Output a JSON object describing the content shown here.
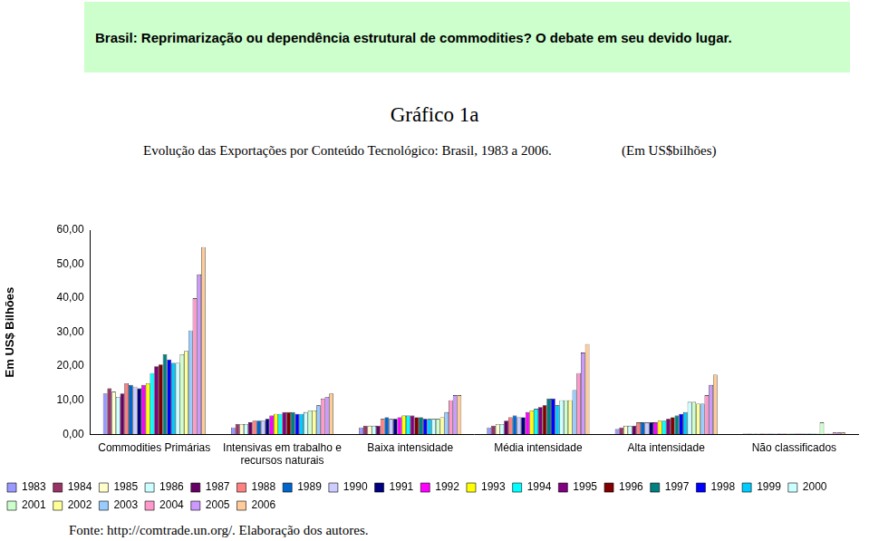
{
  "chart_data": {
    "type": "bar",
    "header": "Brasil: Reprimarização ou dependência estrutural de commodities? O debate em seu devido lugar.",
    "title": "Gráfico 1a",
    "subtitle": "Evolução das Exportações por Conteúdo Tecnológico: Brasil, 1983 a 2006.",
    "unit_note": "(Em US$bilhões)",
    "y_label": "Em US$ Bilhões",
    "source": "Fonte: http://comtrade.un.org/. Elaboração dos autores.",
    "categories": [
      "Commodities Primárias",
      "Intensivas em trabalho e recursos naturais",
      "Baixa intensidade",
      "Média intensidade",
      "Alta intensidade",
      "Não classificados"
    ],
    "ylim": [
      0,
      60
    ],
    "yticks": [
      {
        "value": 0,
        "label": "0,00"
      },
      {
        "value": 10,
        "label": "10,00"
      },
      {
        "value": 20,
        "label": "20,00"
      },
      {
        "value": 30,
        "label": "30,00"
      },
      {
        "value": 40,
        "label": "40,00"
      },
      {
        "value": 50,
        "label": "50,00"
      },
      {
        "value": 60,
        "label": "60,00"
      }
    ],
    "grid": false,
    "legend": "bottom",
    "series": [
      {
        "name": "1983",
        "color": "#9999ff",
        "values": [
          12.0,
          2.0,
          2.0,
          2.0,
          1.5,
          0.2
        ]
      },
      {
        "name": "1984",
        "color": "#993366",
        "values": [
          13.5,
          3.0,
          2.5,
          2.5,
          2.0,
          0.2
        ]
      },
      {
        "name": "1985",
        "color": "#ffffcc",
        "values": [
          12.5,
          3.0,
          2.5,
          3.0,
          2.5,
          0.2
        ]
      },
      {
        "name": "1986",
        "color": "#ccffff",
        "values": [
          11.0,
          3.0,
          2.5,
          3.0,
          2.5,
          0.2
        ]
      },
      {
        "name": "1987",
        "color": "#660066",
        "values": [
          12.0,
          3.5,
          2.5,
          4.0,
          2.5,
          0.2
        ]
      },
      {
        "name": "1988",
        "color": "#ff8080",
        "values": [
          15.0,
          4.0,
          4.5,
          5.0,
          3.5,
          0.2
        ]
      },
      {
        "name": "1989",
        "color": "#0066cc",
        "values": [
          14.5,
          4.0,
          5.0,
          5.5,
          3.5,
          0.2
        ]
      },
      {
        "name": "1990",
        "color": "#ccccff",
        "values": [
          14.0,
          4.0,
          4.5,
          5.0,
          3.5,
          0.2
        ]
      },
      {
        "name": "1991",
        "color": "#000080",
        "values": [
          13.5,
          4.5,
          4.5,
          5.0,
          3.5,
          0.2
        ]
      },
      {
        "name": "1992",
        "color": "#ff00ff",
        "values": [
          14.5,
          5.5,
          5.0,
          6.5,
          3.5,
          0.2
        ]
      },
      {
        "name": "1993",
        "color": "#ffff00",
        "values": [
          15.0,
          6.0,
          5.5,
          7.0,
          4.0,
          0.2
        ]
      },
      {
        "name": "1994",
        "color": "#00ffff",
        "values": [
          18.0,
          6.0,
          5.5,
          7.5,
          4.0,
          0.2
        ]
      },
      {
        "name": "1995",
        "color": "#800080",
        "values": [
          20.0,
          6.5,
          5.5,
          8.0,
          4.5,
          0.2
        ]
      },
      {
        "name": "1996",
        "color": "#800000",
        "values": [
          20.5,
          6.5,
          5.0,
          8.5,
          5.0,
          0.2
        ]
      },
      {
        "name": "1997",
        "color": "#008080",
        "values": [
          23.5,
          6.5,
          5.0,
          10.5,
          5.5,
          0.2
        ]
      },
      {
        "name": "1998",
        "color": "#0000ff",
        "values": [
          22.0,
          6.0,
          4.5,
          10.5,
          6.0,
          0.2
        ]
      },
      {
        "name": "1999",
        "color": "#00ccff",
        "values": [
          21.0,
          6.0,
          4.5,
          8.5,
          6.5,
          0.2
        ]
      },
      {
        "name": "2000",
        "color": "#ccffff",
        "values": [
          21.0,
          6.5,
          4.5,
          10.0,
          9.5,
          0.2
        ]
      },
      {
        "name": "2001",
        "color": "#ccffcc",
        "values": [
          23.5,
          7.0,
          4.5,
          10.0,
          9.5,
          3.5
        ]
      },
      {
        "name": "2002",
        "color": "#ffff99",
        "values": [
          24.5,
          7.0,
          5.0,
          10.0,
          9.0,
          0.2
        ]
      },
      {
        "name": "2003",
        "color": "#99ccff",
        "values": [
          30.5,
          8.5,
          6.5,
          13.0,
          9.0,
          0.2
        ]
      },
      {
        "name": "2004",
        "color": "#ff99cc",
        "values": [
          40.0,
          10.5,
          10.0,
          18.0,
          11.5,
          0.5
        ]
      },
      {
        "name": "2005",
        "color": "#cc99ff",
        "values": [
          47.0,
          11.0,
          11.5,
          24.0,
          14.5,
          0.5
        ]
      },
      {
        "name": "2006",
        "color": "#ffcc99",
        "values": [
          55.0,
          12.0,
          11.5,
          26.5,
          17.5,
          0.5
        ]
      }
    ]
  }
}
